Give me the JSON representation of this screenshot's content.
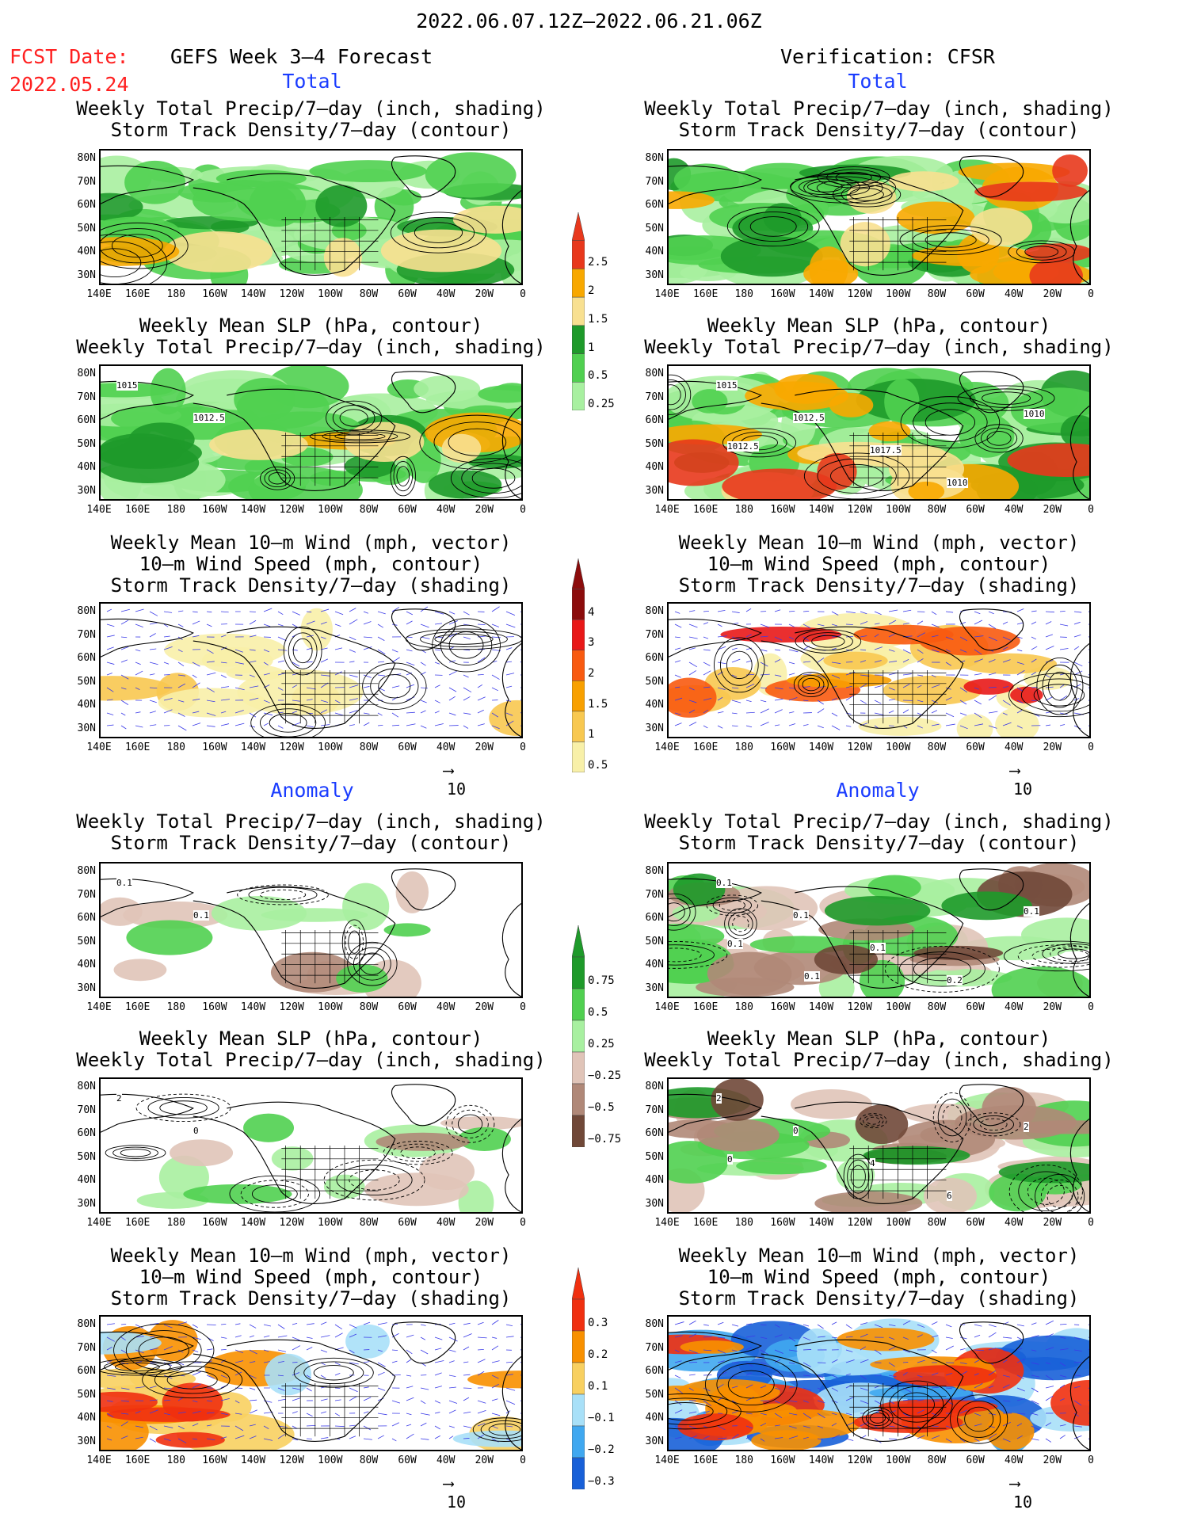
{
  "header": {
    "date_range": "2022.06.07.12Z–2022.06.21.06Z",
    "fcst_label": "FCST Date:",
    "fcst_date": "2022.05.24",
    "left_title": "GEFS Week 3–4 Forecast",
    "right_title": "Verification: CFSR"
  },
  "sections": {
    "total": "Total",
    "anomaly": "Anomaly"
  },
  "panel_titles": {
    "precip_track": [
      "Weekly Total Precip/7–day (inch, shading)",
      "Storm Track Density/7–day (contour)"
    ],
    "slp_precip": [
      "Weekly Mean SLP (hPa, contour)",
      "Weekly Total Precip/7–day (inch, shading)"
    ],
    "wind_track": [
      "Weekly Mean 10–m Wind (mph, vector)",
      "10–m Wind Speed (mph, contour)",
      "Storm Track Density/7–day (shading)"
    ]
  },
  "axes": {
    "lat_labels": [
      "80N",
      "70N",
      "60N",
      "50N",
      "40N",
      "30N"
    ],
    "lon_labels": [
      "140E",
      "160E",
      "180",
      "160W",
      "140W",
      "120W",
      "100W",
      "80W",
      "60W",
      "40W",
      "20W",
      "0"
    ]
  },
  "vector_ref": "10",
  "colorbars": {
    "precip_total": {
      "labels": [
        "2.5",
        "2",
        "1.5",
        "1",
        "0.5",
        "0.25"
      ],
      "colors": [
        "#e8381c",
        "#f8a800",
        "#f8e090",
        "#1e9a2a",
        "#50d050",
        "#a8f0a0"
      ]
    },
    "track_total": {
      "labels": [
        "4",
        "3",
        "2",
        "1.5",
        "1",
        "0.5"
      ],
      "colors": [
        "#8c0c0c",
        "#e81818",
        "#f85a10",
        "#f8a000",
        "#f8c850",
        "#f8f0a8"
      ]
    },
    "precip_anom": {
      "labels": [
        "0.75",
        "0.5",
        "0.25",
        "−0.25",
        "−0.5",
        "−0.75"
      ],
      "colors": [
        "#1e9a2a",
        "#50d050",
        "#a8f0a0",
        "#e0c4b8",
        "#b08878",
        "#704838"
      ]
    },
    "track_anom": {
      "labels": [
        "0.3",
        "0.2",
        "0.1",
        "−0.1",
        "−0.2",
        "−0.3"
      ],
      "colors": [
        "#f03010",
        "#f89000",
        "#f8d060",
        "#a8e0f8",
        "#40a8f0",
        "#1860d8"
      ]
    }
  },
  "contour_labels": {
    "slp_fcst": [
      "1015",
      "1012.5"
    ],
    "slp_verif": [
      "1015",
      "1012.5",
      "1017.5",
      "1010",
      "1010",
      "1012.5"
    ],
    "anom_track_fcst": [
      "0.1",
      "0.1"
    ],
    "anom_track_verif": [
      "0.1",
      "0.1",
      "0.1",
      "0.2",
      "0.1",
      "0.1",
      "0.1"
    ],
    "anom_slp_fcst": [
      "2",
      "0"
    ],
    "anom_slp_verif": [
      "2",
      "0",
      "4",
      "6",
      "2",
      "0"
    ]
  }
}
